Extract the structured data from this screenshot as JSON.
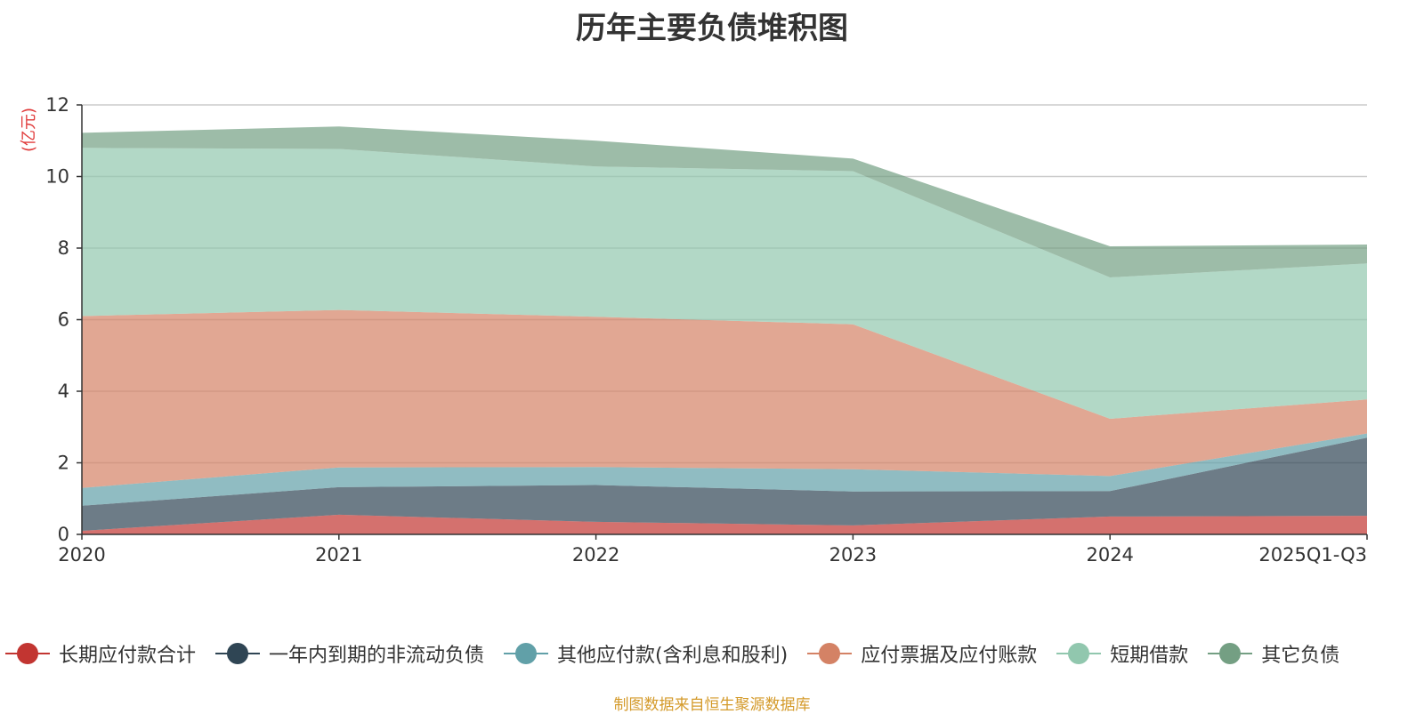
{
  "chart_data": {
    "type": "area",
    "stacked": true,
    "title": "历年主要负债堆积图",
    "ylabel": "(亿元)",
    "xlabel": "",
    "ylim": [
      0,
      12
    ],
    "yticks": [
      0,
      2,
      4,
      6,
      8,
      10,
      12
    ],
    "categories": [
      "2020",
      "2021",
      "2022",
      "2023",
      "2024",
      "2025Q1-Q3"
    ],
    "series": [
      {
        "name": "长期应付款合计",
        "color": "#c23531",
        "values": [
          0.1,
          0.55,
          0.35,
          0.25,
          0.5,
          0.52
        ]
      },
      {
        "name": "一年内到期的非流动负债",
        "color": "#2f4554",
        "values": [
          0.7,
          0.77,
          1.03,
          0.95,
          0.71,
          2.18
        ]
      },
      {
        "name": "其他应付款(含利息和股利)",
        "color": "#61a0a8",
        "values": [
          0.5,
          0.55,
          0.5,
          0.62,
          0.42,
          0.12
        ]
      },
      {
        "name": "应付票据及应付账款",
        "color": "#d48265",
        "values": [
          4.8,
          4.4,
          4.2,
          4.05,
          1.6,
          0.95
        ]
      },
      {
        "name": "短期借款",
        "color": "#91c7ae",
        "values": [
          4.7,
          4.5,
          4.2,
          4.28,
          3.95,
          3.8
        ]
      },
      {
        "name": "其它负债",
        "color": "#749f83",
        "values": [
          0.42,
          0.63,
          0.72,
          0.35,
          0.87,
          0.53
        ]
      }
    ],
    "grid": true,
    "legend_position": "bottom"
  },
  "footer": "制图数据来自恒生聚源数据库"
}
